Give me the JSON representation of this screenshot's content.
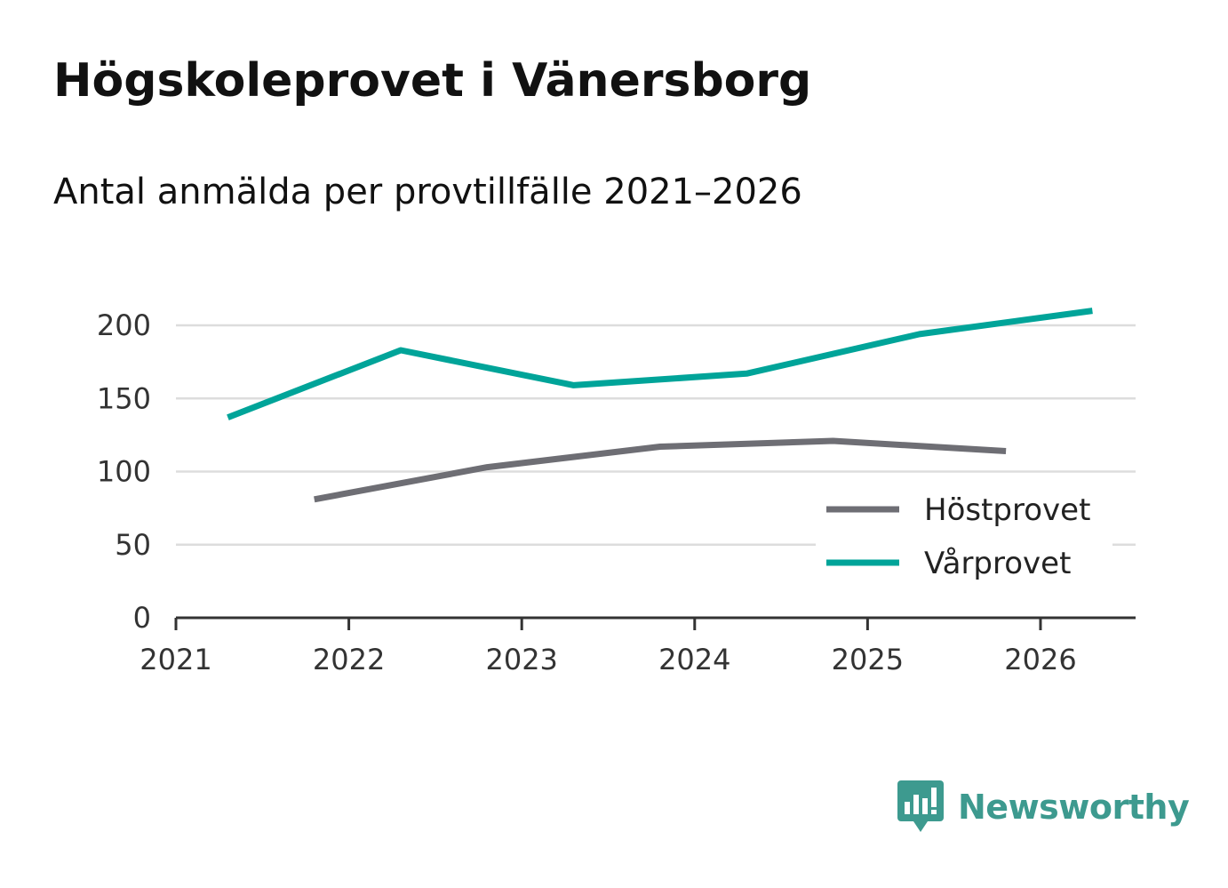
{
  "chart_data": {
    "type": "line",
    "title": "Högskoleprovet i Vänersborg",
    "subtitle": "Antal anmälda per provtillfälle 2021–2026",
    "xlabel": "",
    "ylabel": "",
    "xlim": [
      2021,
      2026.55
    ],
    "ylim": [
      0,
      200
    ],
    "x_ticks": [
      2021,
      2022,
      2023,
      2024,
      2025,
      2026
    ],
    "x_tick_labels": [
      "2021",
      "2022",
      "2023",
      "2024",
      "2025",
      "2026"
    ],
    "y_ticks": [
      0,
      50,
      100,
      150,
      200
    ],
    "y_tick_labels": [
      "0",
      "50",
      "100",
      "150",
      "200"
    ],
    "grid": true,
    "legend_position": "bottom-right",
    "series": [
      {
        "name": "Höstprovet",
        "color": "#6e6e74",
        "x": [
          2021.8,
          2022.8,
          2023.8,
          2024.8,
          2025.8
        ],
        "values": [
          81,
          103,
          117,
          121,
          114
        ]
      },
      {
        "name": "Vårprovet",
        "color": "#00a499",
        "x": [
          2021.3,
          2022.3,
          2023.3,
          2024.3,
          2025.3,
          2026.3
        ],
        "values": [
          137,
          183,
          159,
          167,
          194,
          210
        ]
      }
    ]
  },
  "brand": {
    "name": "Newsworthy",
    "color": "#3d9a8f",
    "icon": "newsworthy-logo-icon"
  }
}
